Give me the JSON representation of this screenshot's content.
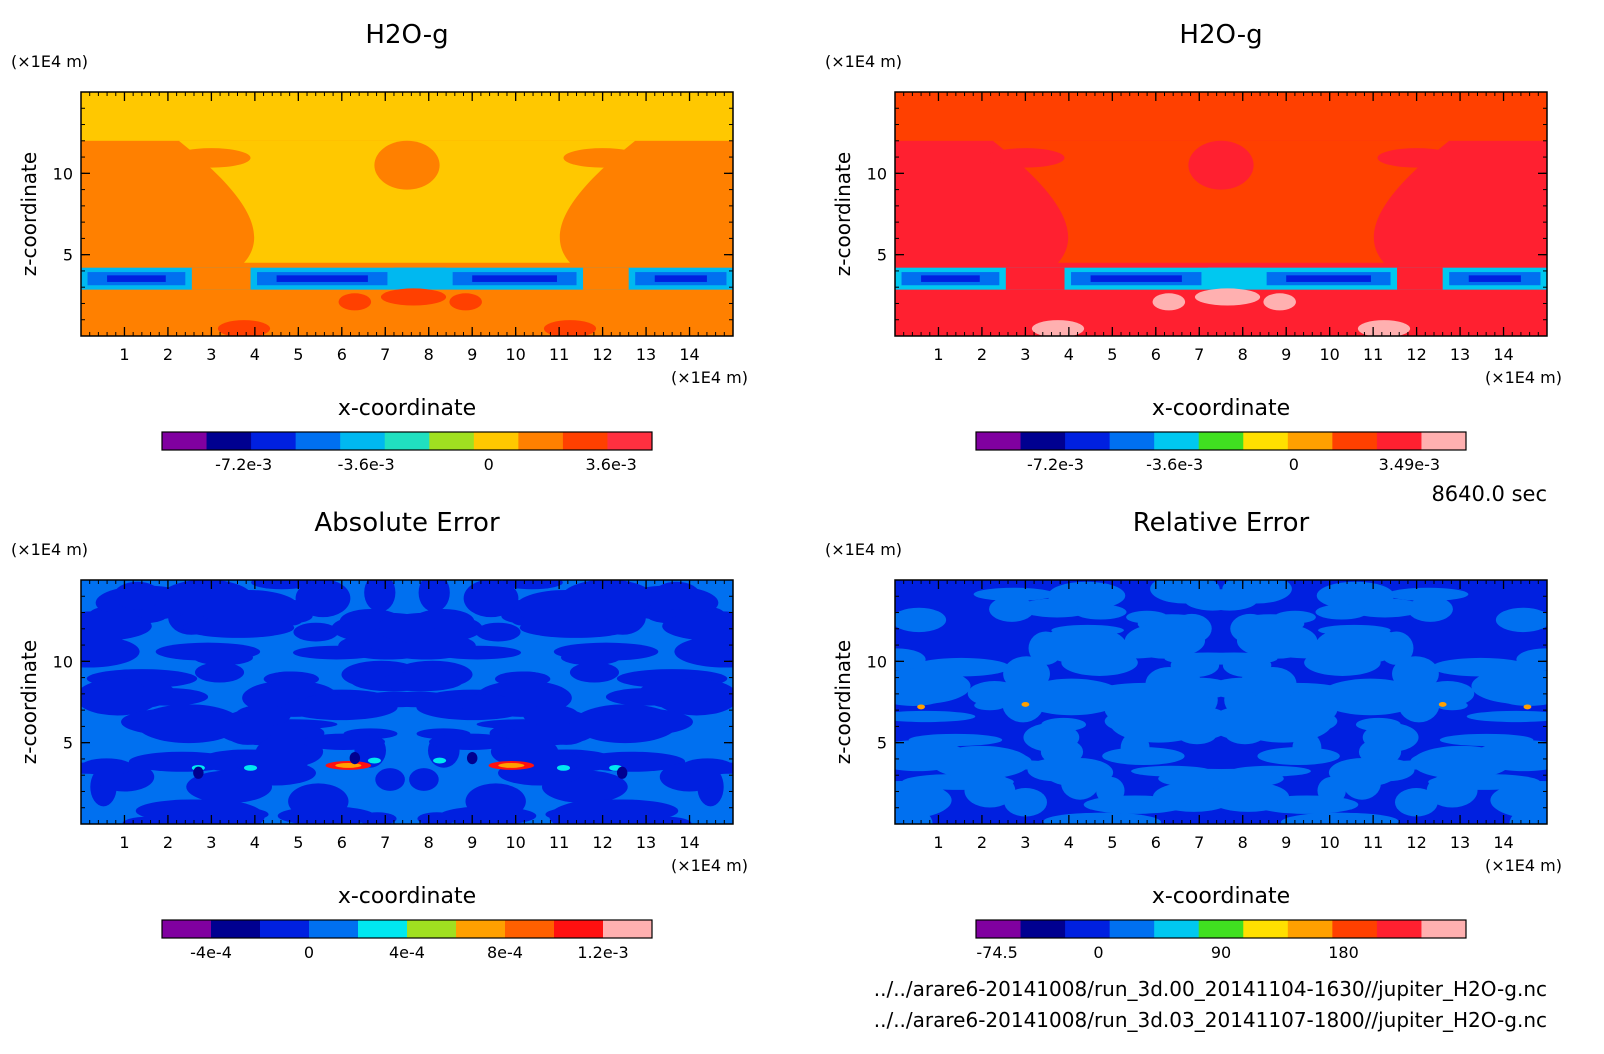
{
  "time_label": "8640.0 sec",
  "files": [
    "../../arare6-20141008/run_3d.00_20141104-1630//jupiter_H2O-g.nc",
    "../../arare6-20141008/run_3d.03_20141107-1800//jupiter_H2O-g.nc"
  ],
  "chart_data": [
    {
      "type": "heatmap",
      "title": "H2O-g",
      "xlabel": "x-coordinate",
      "ylabel": "z-coordinate",
      "x_unit": "(×1E4 m)",
      "y_unit": "(×1E4 m)",
      "xlim": [
        0,
        15
      ],
      "ylim": [
        0,
        15
      ],
      "x_ticks": [
        "1",
        "2",
        "3",
        "4",
        "5",
        "6",
        "7",
        "8",
        "9",
        "10",
        "11",
        "12",
        "13",
        "14"
      ],
      "y_ticks": [
        "5",
        "10"
      ],
      "colorbar": {
        "colors": [
          "#8000a0",
          "#000090",
          "#0020e0",
          "#0070f0",
          "#00b8f0",
          "#20e0c0",
          "#a0e020",
          "#ffc800",
          "#ff8000",
          "#ff4000",
          "#ff3040"
        ],
        "tick_labels": [
          "-7.2e-3",
          "-3.6e-3",
          "0",
          "3.6e-3"
        ],
        "tick_values": [
          -0.0072,
          -0.0036,
          0,
          0.0036
        ],
        "range": [
          -0.0096,
          0.0048
        ]
      }
    },
    {
      "type": "heatmap",
      "title": "H2O-g",
      "xlabel": "x-coordinate",
      "ylabel": "z-coordinate",
      "x_unit": "(×1E4 m)",
      "y_unit": "(×1E4 m)",
      "xlim": [
        0,
        15
      ],
      "ylim": [
        0,
        15
      ],
      "x_ticks": [
        "1",
        "2",
        "3",
        "4",
        "5",
        "6",
        "7",
        "8",
        "9",
        "10",
        "11",
        "12",
        "13",
        "14"
      ],
      "y_ticks": [
        "5",
        "10"
      ],
      "colorbar": {
        "colors": [
          "#8000a0",
          "#000090",
          "#0020e0",
          "#0070f0",
          "#00c8f0",
          "#40e020",
          "#ffe000",
          "#ffa000",
          "#ff4000",
          "#ff2030",
          "#ffb0b0"
        ],
        "tick_labels": [
          "-7.2e-3",
          "-3.6e-3",
          "0",
          "3.49e-3"
        ],
        "tick_values": [
          -0.0072,
          -0.0036,
          0,
          0.00349
        ],
        "range": [
          -0.0096,
          0.0052
        ]
      }
    },
    {
      "type": "heatmap",
      "title": "Absolute Error",
      "xlabel": "x-coordinate",
      "ylabel": "z-coordinate",
      "x_unit": "(×1E4 m)",
      "y_unit": "(×1E4 m)",
      "xlim": [
        0,
        15
      ],
      "ylim": [
        0,
        15
      ],
      "x_ticks": [
        "1",
        "2",
        "3",
        "4",
        "5",
        "6",
        "7",
        "8",
        "9",
        "10",
        "11",
        "12",
        "13",
        "14"
      ],
      "y_ticks": [
        "5",
        "10"
      ],
      "colorbar": {
        "colors": [
          "#8000a0",
          "#000090",
          "#0020e0",
          "#0070f0",
          "#00e8f0",
          "#a0e020",
          "#ffa000",
          "#ff6000",
          "#ff1010",
          "#ffb0b0"
        ],
        "tick_labels": [
          "-4e-4",
          "0",
          "4e-4",
          "8e-4",
          "1.2e-3"
        ],
        "tick_values": [
          -0.0004,
          0,
          0.0004,
          0.0008,
          0.0012
        ],
        "range": [
          -0.0006,
          0.0014
        ]
      }
    },
    {
      "type": "heatmap",
      "title": "Relative Error",
      "xlabel": "x-coordinate",
      "ylabel": "z-coordinate",
      "x_unit": "(×1E4 m)",
      "y_unit": "(×1E4 m)",
      "xlim": [
        0,
        15
      ],
      "ylim": [
        0,
        15
      ],
      "x_ticks": [
        "1",
        "2",
        "3",
        "4",
        "5",
        "6",
        "7",
        "8",
        "9",
        "10",
        "11",
        "12",
        "13",
        "14"
      ],
      "y_ticks": [
        "5",
        "10"
      ],
      "colorbar": {
        "colors": [
          "#8000a0",
          "#000090",
          "#0020e0",
          "#0070f0",
          "#00c8f0",
          "#40e020",
          "#ffe000",
          "#ffa000",
          "#ff4000",
          "#ff2030",
          "#ffb0b0"
        ],
        "tick_labels": [
          "-74.5",
          "0",
          "90",
          "180"
        ],
        "tick_values": [
          -74.5,
          0,
          90,
          180
        ],
        "range": [
          -90,
          270
        ]
      }
    }
  ]
}
